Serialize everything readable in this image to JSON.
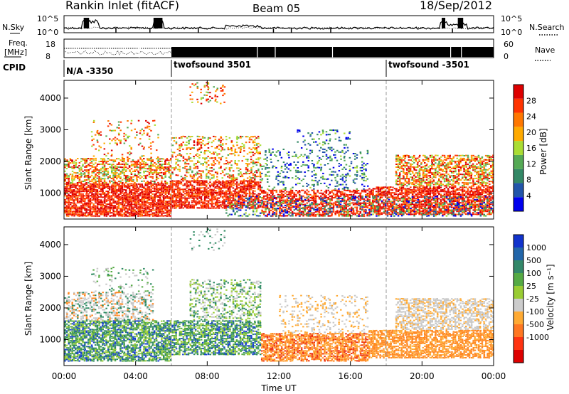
{
  "header": {
    "station": "Rankin Inlet (fitACF)",
    "beam": "Beam 05",
    "date": "18/Sep/2012"
  },
  "noise_panel": {
    "left_label": "N.Sky",
    "right_label": "N.Search",
    "left_ticks": [
      "10^5",
      "10^0"
    ],
    "right_ticks": [
      "10^5",
      "10^0"
    ]
  },
  "freq_panel": {
    "left_label_line1": "Freq.",
    "left_label_line2": "[MHz]",
    "right_label": "Nave",
    "left_ticks": [
      "18",
      "8"
    ],
    "right_ticks": [
      "60",
      "0"
    ]
  },
  "cpid": {
    "label": "CPID",
    "segments": [
      {
        "start_hour": 0,
        "text": "N/A -3350"
      },
      {
        "start_hour": 6,
        "text": "twofsound 3501"
      },
      {
        "start_hour": 18,
        "text": "twofsound -3501"
      }
    ]
  },
  "time_axis": {
    "label": "Time UT",
    "ticks": [
      "00:00",
      "04:00",
      "08:00",
      "12:00",
      "16:00",
      "20:00",
      "00:00"
    ]
  },
  "range_axis": {
    "label": "Slant Range [km]",
    "ticks": [
      "1000",
      "2000",
      "3000",
      "4000"
    ]
  },
  "power_scale": {
    "label": "Power [dB]",
    "ticks": [
      "4",
      "8",
      "12",
      "16",
      "20",
      "24",
      "28"
    ],
    "colors": [
      "#0000ee",
      "#2255aa",
      "#338866",
      "#55aa55",
      "#aadd33",
      "#ffaa00",
      "#ff7700",
      "#ff3300",
      "#dd0000"
    ]
  },
  "velocity_scale": {
    "label": "Velocity [m s⁻¹]",
    "ticks": [
      "1000",
      "500",
      "100",
      "25",
      "-25",
      "-100",
      "-500",
      "-1000"
    ],
    "colors": [
      "#1133cc",
      "#2266aa",
      "#33886a",
      "#55aa44",
      "#99cc33",
      "#cccccc",
      "#ffaa33",
      "#ff7722",
      "#ff3311",
      "#dd0000"
    ]
  },
  "chart_data": [
    {
      "type": "heatmap",
      "title": "Power",
      "xlabel": "Time UT",
      "ylabel": "Slant Range [km]",
      "xlim": [
        0,
        24
      ],
      "ylim": [
        180,
        4560
      ],
      "colorbar_label": "Power [dB]",
      "colorbar_range": [
        0,
        32
      ]
    },
    {
      "type": "heatmap",
      "title": "Velocity",
      "xlabel": "Time UT",
      "ylabel": "Slant Range [km]",
      "xlim": [
        0,
        24
      ],
      "ylim": [
        180,
        4560
      ],
      "colorbar_label": "Velocity [m s⁻¹]",
      "colorbar_range": [
        -1000,
        1000
      ]
    }
  ]
}
